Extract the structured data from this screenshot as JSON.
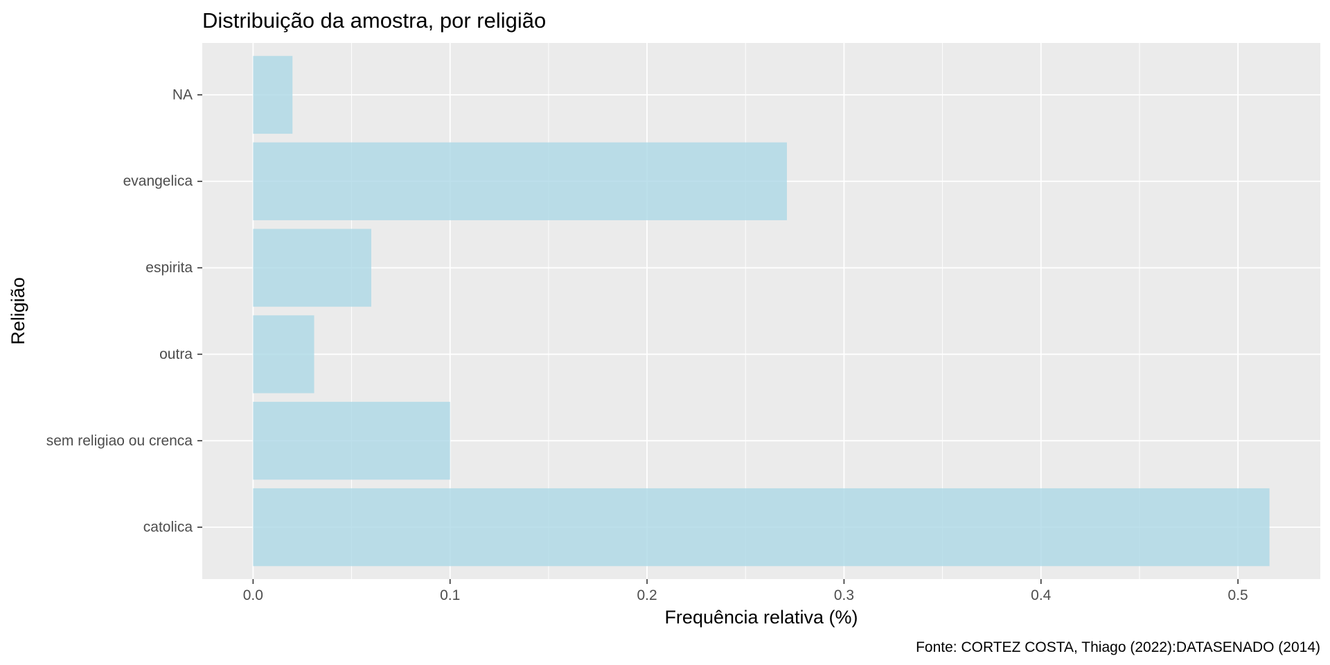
{
  "chart_data": {
    "type": "bar",
    "orientation": "horizontal",
    "title": "Distribuição da amostra, por religião",
    "xlabel": "Frequência relativa (%)",
    "ylabel": "Religião",
    "caption": "Fonte: CORTEZ COSTA, Thiago (2022):DATASENADO (2014)",
    "categories": [
      "catolica",
      "sem religiao ou crenca",
      "outra",
      "espirita",
      "evangelica",
      "NA"
    ],
    "values": [
      0.516,
      0.1,
      0.031,
      0.06,
      0.271,
      0.02
    ],
    "xlim": [
      -0.0258,
      0.5418
    ],
    "xticks": [
      "0.0",
      "0.1",
      "0.2",
      "0.3",
      "0.4",
      "0.5"
    ],
    "grid": true,
    "legend": "none",
    "colors": {
      "bar": "#add8e6",
      "panel_background": "#ebebeb",
      "grid": "#ffffff"
    }
  }
}
